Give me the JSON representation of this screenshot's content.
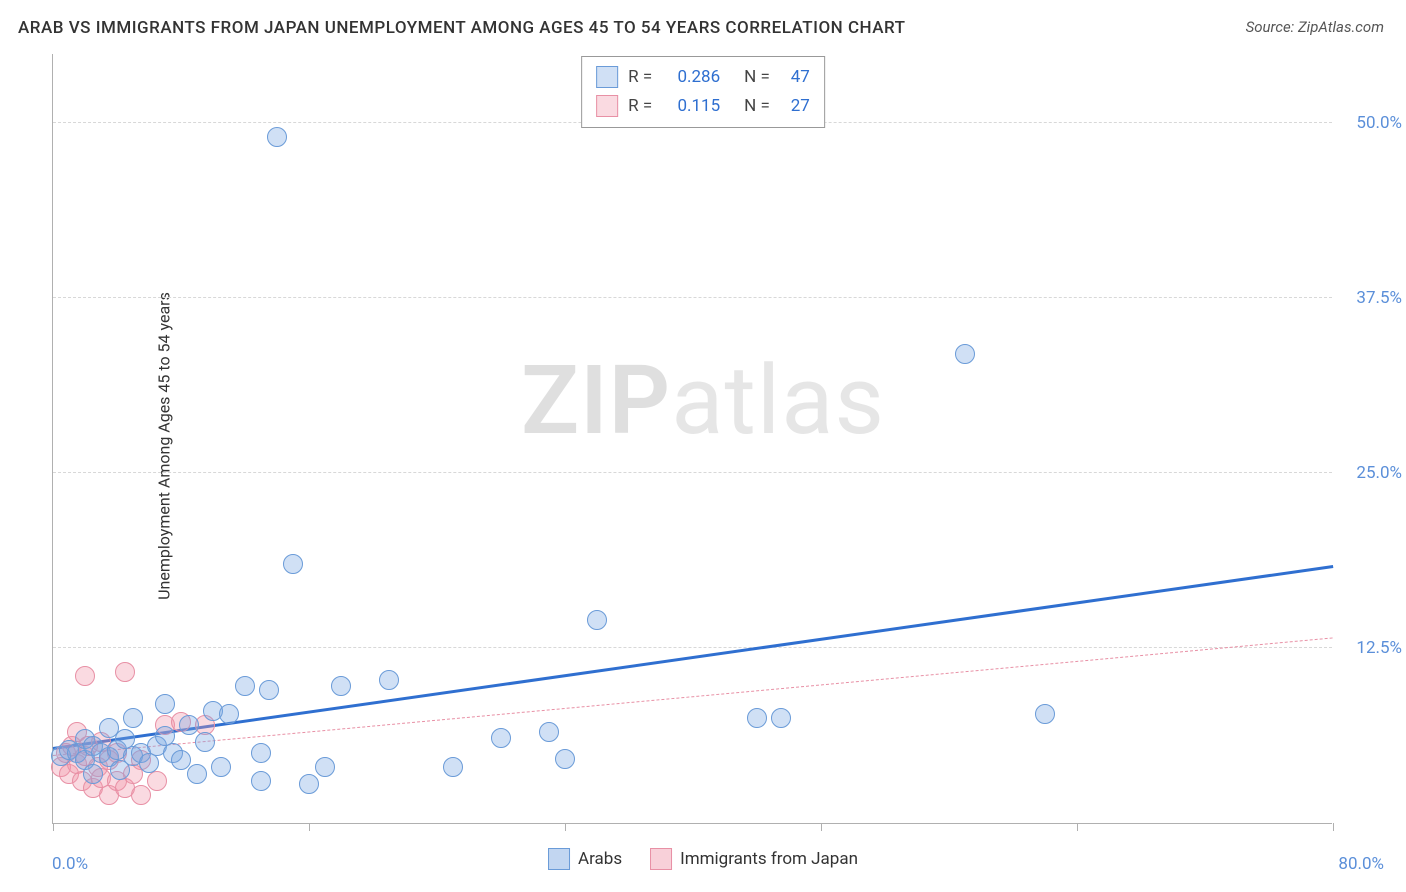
{
  "title": "ARAB VS IMMIGRANTS FROM JAPAN UNEMPLOYMENT AMONG AGES 45 TO 54 YEARS CORRELATION CHART",
  "source": "Source: ZipAtlas.com",
  "y_axis_label": "Unemployment Among Ages 45 to 54 years",
  "watermark_bold": "ZIP",
  "watermark_light": "atlas",
  "chart": {
    "type": "scatter",
    "xlim": [
      0,
      80
    ],
    "ylim": [
      0,
      55
    ],
    "x_tick_positions": [
      0,
      16,
      32,
      48,
      64,
      80
    ],
    "x_min_label": "0.0%",
    "x_max_label": "80.0%",
    "y_gridlines": [
      {
        "value": 12.5,
        "label": "12.5%"
      },
      {
        "value": 25.0,
        "label": "25.0%"
      },
      {
        "value": 37.5,
        "label": "37.5%"
      },
      {
        "value": 50.0,
        "label": "50.0%"
      }
    ],
    "background_color": "#ffffff",
    "grid_color": "#d8d8d8",
    "axis_color": "#b0b0b0",
    "tick_label_color": "#5b8fd9",
    "point_radius": 10,
    "point_stroke_width": 1.5,
    "series": [
      {
        "name": "Arabs",
        "fill_color": "rgba(120,165,225,0.35)",
        "stroke_color": "#6a9bd8",
        "trend_color": "#2f6fd0",
        "trend_width": 3.5,
        "trend_dash": "solid",
        "R": "0.286",
        "N": "47",
        "trend_start": {
          "x": 0,
          "y": 5.2
        },
        "trend_end": {
          "x": 80,
          "y": 18.2
        },
        "points": [
          {
            "x": 0.5,
            "y": 4.8
          },
          {
            "x": 1.0,
            "y": 5.2
          },
          {
            "x": 1.5,
            "y": 5.0
          },
          {
            "x": 2.0,
            "y": 6.0
          },
          {
            "x": 2.0,
            "y": 4.5
          },
          {
            "x": 2.5,
            "y": 5.5
          },
          {
            "x": 3.0,
            "y": 5.0
          },
          {
            "x": 3.5,
            "y": 6.8
          },
          {
            "x": 3.5,
            "y": 4.7
          },
          {
            "x": 4.0,
            "y": 5.2
          },
          {
            "x": 4.5,
            "y": 6.0
          },
          {
            "x": 5.0,
            "y": 4.8
          },
          {
            "x": 5.0,
            "y": 7.5
          },
          {
            "x": 5.5,
            "y": 5.0
          },
          {
            "x": 6.0,
            "y": 4.3
          },
          {
            "x": 6.5,
            "y": 5.5
          },
          {
            "x": 7.0,
            "y": 6.2
          },
          {
            "x": 7.0,
            "y": 8.5
          },
          {
            "x": 7.5,
            "y": 5.0
          },
          {
            "x": 8.0,
            "y": 4.5
          },
          {
            "x": 8.5,
            "y": 7.0
          },
          {
            "x": 9.0,
            "y": 3.5
          },
          {
            "x": 9.5,
            "y": 5.8
          },
          {
            "x": 10.0,
            "y": 8.0
          },
          {
            "x": 10.5,
            "y": 4.0
          },
          {
            "x": 11.0,
            "y": 7.8
          },
          {
            "x": 12.0,
            "y": 9.8
          },
          {
            "x": 13.0,
            "y": 5.0
          },
          {
            "x": 13.0,
            "y": 3.0
          },
          {
            "x": 13.5,
            "y": 9.5
          },
          {
            "x": 14.0,
            "y": 49.0
          },
          {
            "x": 15.0,
            "y": 18.5
          },
          {
            "x": 16.0,
            "y": 2.8
          },
          {
            "x": 17.0,
            "y": 4.0
          },
          {
            "x": 18.0,
            "y": 9.8
          },
          {
            "x": 21.0,
            "y": 10.2
          },
          {
            "x": 25.0,
            "y": 4.0
          },
          {
            "x": 28.0,
            "y": 6.1
          },
          {
            "x": 31.0,
            "y": 6.5
          },
          {
            "x": 32.0,
            "y": 4.6
          },
          {
            "x": 34.0,
            "y": 14.5
          },
          {
            "x": 44.0,
            "y": 7.5
          },
          {
            "x": 45.5,
            "y": 7.5
          },
          {
            "x": 57.0,
            "y": 33.5
          },
          {
            "x": 62.0,
            "y": 7.8
          },
          {
            "x": 2.5,
            "y": 3.5
          },
          {
            "x": 4.2,
            "y": 3.8
          }
        ]
      },
      {
        "name": "Immigrants from Japan",
        "fill_color": "rgba(240,150,170,0.35)",
        "stroke_color": "#e890a5",
        "trend_color": "#e890a5",
        "trend_width": 1.5,
        "trend_dash": "dashed",
        "R": "0.115",
        "N": "27",
        "trend_start": {
          "x": 0,
          "y": 4.8
        },
        "trend_end": {
          "x": 80,
          "y": 13.2
        },
        "points": [
          {
            "x": 0.5,
            "y": 4.0
          },
          {
            "x": 0.8,
            "y": 5.0
          },
          {
            "x": 1.0,
            "y": 3.5
          },
          {
            "x": 1.2,
            "y": 5.5
          },
          {
            "x": 1.5,
            "y": 4.2
          },
          {
            "x": 1.5,
            "y": 6.5
          },
          {
            "x": 1.8,
            "y": 3.0
          },
          {
            "x": 2.0,
            "y": 4.8
          },
          {
            "x": 2.0,
            "y": 10.5
          },
          {
            "x": 2.2,
            "y": 5.5
          },
          {
            "x": 2.5,
            "y": 2.5
          },
          {
            "x": 2.8,
            "y": 4.0
          },
          {
            "x": 3.0,
            "y": 3.2
          },
          {
            "x": 3.0,
            "y": 5.8
          },
          {
            "x": 3.5,
            "y": 2.0
          },
          {
            "x": 3.5,
            "y": 4.5
          },
          {
            "x": 4.0,
            "y": 3.0
          },
          {
            "x": 4.0,
            "y": 5.0
          },
          {
            "x": 4.5,
            "y": 2.5
          },
          {
            "x": 4.5,
            "y": 10.8
          },
          {
            "x": 5.0,
            "y": 3.5
          },
          {
            "x": 5.5,
            "y": 2.0
          },
          {
            "x": 5.5,
            "y": 4.5
          },
          {
            "x": 6.5,
            "y": 3.0
          },
          {
            "x": 7.0,
            "y": 7.0
          },
          {
            "x": 8.0,
            "y": 7.2
          },
          {
            "x": 9.5,
            "y": 7.0
          }
        ]
      }
    ]
  },
  "legend_bottom": [
    {
      "label": "Arabs",
      "fill": "rgba(120,165,225,0.45)",
      "stroke": "#6a9bd8"
    },
    {
      "label": "Immigrants from Japan",
      "fill": "rgba(240,150,170,0.45)",
      "stroke": "#e890a5"
    }
  ],
  "legend_top_label_color": "#444",
  "legend_top_value_color": "#2f6fd0"
}
